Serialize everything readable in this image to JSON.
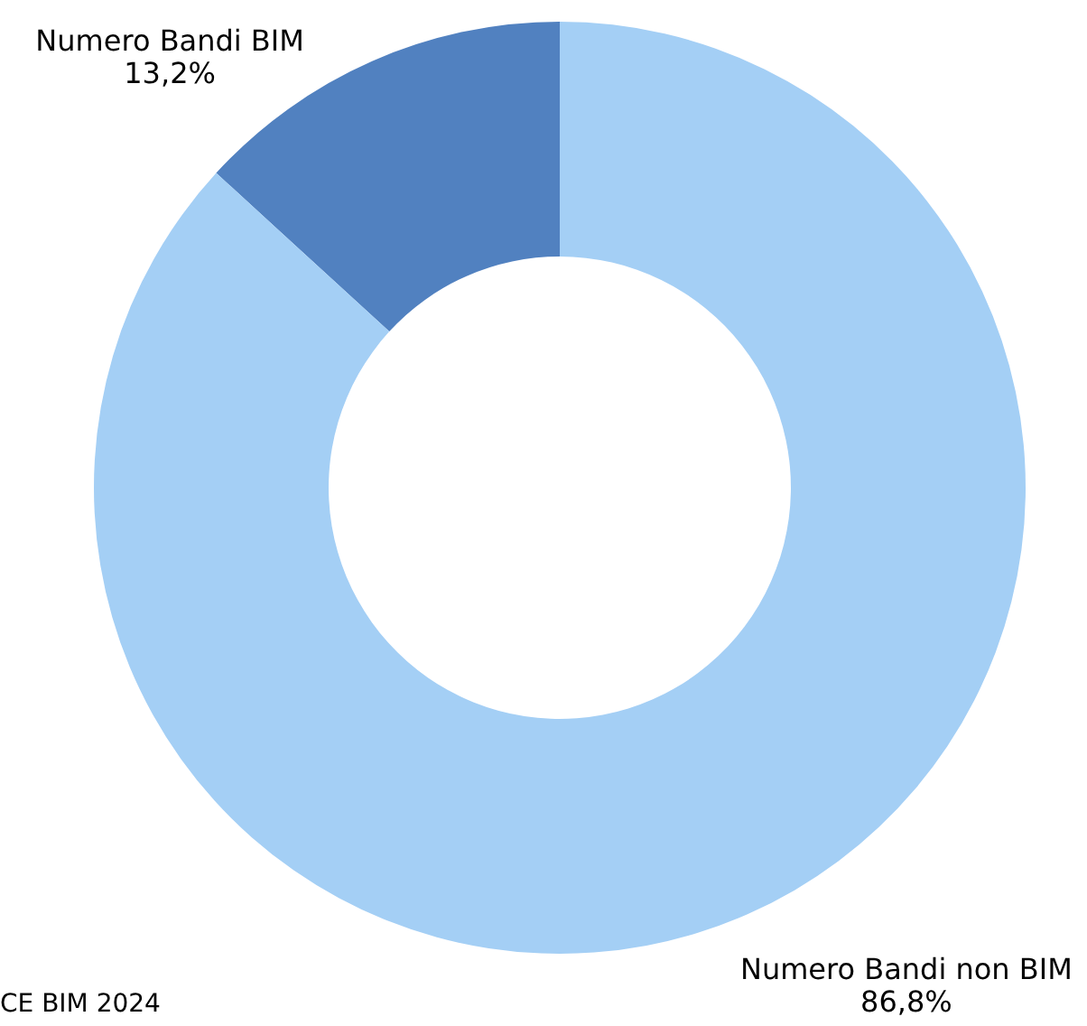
{
  "chart_data": {
    "type": "donut",
    "categories": [
      "Numero Bandi BIM",
      "Numero Bandi non BIM"
    ],
    "values": [
      13.2,
      86.8
    ],
    "colors": [
      "#5181c0",
      "#a4cff5"
    ],
    "value_labels": [
      "13,2%",
      "86,8%"
    ],
    "annotations": [
      "CE BIM 2024"
    ],
    "legend": false
  }
}
